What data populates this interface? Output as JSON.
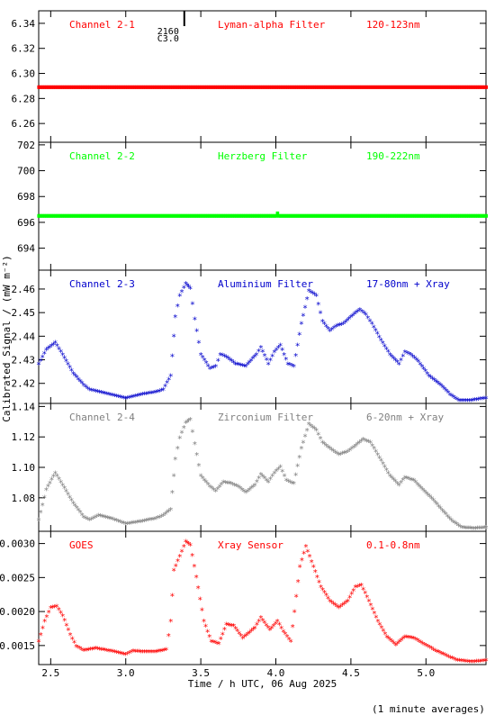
{
  "figure": {
    "xlabel": "Time / h UTC, 06 Aug 2025",
    "ylabel": "Calibrated Signal / (mW m⁻²)",
    "footnote": "(1 minute averages)",
    "marker_annotation": {
      "x": 3.39,
      "line1": "2160",
      "line2": "C3.0"
    },
    "xlim": [
      2.42,
      5.4
    ],
    "xticks": [
      2.5,
      3.0,
      3.5,
      4.0,
      4.5,
      5.0
    ],
    "xtick_labels": [
      "2.5",
      "3.0",
      "3.5",
      "4.0",
      "4.5",
      "5.0"
    ]
  },
  "chart_data": [
    {
      "type": "scatter",
      "title": "",
      "labels": {
        "left": "Channel 2-1",
        "center": "Lyman-alpha Filter",
        "right": "120-123nm"
      },
      "color": "#ff0000",
      "ylim": [
        6.245,
        6.35
      ],
      "yticks": [
        6.26,
        6.28,
        6.3,
        6.32,
        6.34
      ],
      "ytick_labels": [
        "6.26",
        "6.28",
        "6.30",
        "6.32",
        "6.34"
      ],
      "points": [
        [
          2.42,
          6.289
        ],
        [
          5.4,
          6.289
        ]
      ]
    },
    {
      "type": "scatter",
      "title": "",
      "labels": {
        "left": "Channel 2-2",
        "center": "Herzberg Filter",
        "right": "190-222nm"
      },
      "color": "#00ff00",
      "ylim": [
        692.3,
        702.2
      ],
      "yticks": [
        694,
        696,
        698,
        700,
        702
      ],
      "ytick_labels": [
        "694",
        "696",
        "698",
        "700",
        "702"
      ],
      "points": [
        [
          2.42,
          696.5
        ],
        [
          4.0,
          696.5
        ],
        [
          4.01,
          696.7
        ],
        [
          4.02,
          696.5
        ],
        [
          5.4,
          696.5
        ]
      ]
    },
    {
      "type": "scatter",
      "title": "",
      "labels": {
        "left": "Channel 2-3",
        "center": "Aluminium Filter",
        "right": "17-80nm + Xray"
      },
      "color": "#0000cc",
      "ylim": [
        2.4115,
        2.468
      ],
      "yticks": [
        2.42,
        2.43,
        2.44,
        2.45,
        2.46
      ],
      "ytick_labels": [
        "2.42",
        "2.43",
        "2.44",
        "2.45",
        "2.46"
      ],
      "points": [
        [
          2.42,
          2.428
        ],
        [
          2.47,
          2.434
        ],
        [
          2.53,
          2.437
        ],
        [
          2.58,
          2.432
        ],
        [
          2.65,
          2.424
        ],
        [
          2.72,
          2.419
        ],
        [
          2.76,
          2.417
        ],
        [
          2.8,
          2.4165
        ],
        [
          2.9,
          2.415
        ],
        [
          3.0,
          2.4135
        ],
        [
          3.1,
          2.415
        ],
        [
          3.2,
          2.416
        ],
        [
          3.25,
          2.417
        ],
        [
          3.3,
          2.423
        ],
        [
          3.33,
          2.448
        ],
        [
          3.36,
          2.457
        ],
        [
          3.4,
          2.462
        ],
        [
          3.43,
          2.46
        ],
        [
          3.46,
          2.447
        ],
        [
          3.5,
          2.432
        ],
        [
          3.56,
          2.426
        ],
        [
          3.6,
          2.427
        ],
        [
          3.63,
          2.432
        ],
        [
          3.67,
          2.431
        ],
        [
          3.73,
          2.428
        ],
        [
          3.8,
          2.427
        ],
        [
          3.87,
          2.432
        ],
        [
          3.9,
          2.435
        ],
        [
          3.95,
          2.428
        ],
        [
          3.99,
          2.433
        ],
        [
          4.03,
          2.436
        ],
        [
          4.08,
          2.428
        ],
        [
          4.12,
          2.427
        ],
        [
          4.17,
          2.445
        ],
        [
          4.22,
          2.459
        ],
        [
          4.27,
          2.457
        ],
        [
          4.31,
          2.446
        ],
        [
          4.36,
          2.442
        ],
        [
          4.4,
          2.444
        ],
        [
          4.45,
          2.445
        ],
        [
          4.5,
          2.448
        ],
        [
          4.56,
          2.451
        ],
        [
          4.6,
          2.449
        ],
        [
          4.64,
          2.445
        ],
        [
          4.7,
          2.438
        ],
        [
          4.76,
          2.432
        ],
        [
          4.82,
          2.428
        ],
        [
          4.86,
          2.433
        ],
        [
          4.9,
          2.432
        ],
        [
          4.95,
          2.429
        ],
        [
          5.02,
          2.423
        ],
        [
          5.1,
          2.419
        ],
        [
          5.16,
          2.415
        ],
        [
          5.22,
          2.4125
        ],
        [
          5.3,
          2.4125
        ],
        [
          5.4,
          2.4135
        ]
      ]
    },
    {
      "type": "scatter",
      "title": "",
      "labels": {
        "left": "Channel 2-4",
        "center": "Zirconium Filter",
        "right": "6-20nm + Xray"
      },
      "color": "#808080",
      "ylim": [
        1.058,
        1.142
      ],
      "yticks": [
        1.08,
        1.1,
        1.12,
        1.14
      ],
      "ytick_labels": [
        "1.08",
        "1.10",
        "1.12",
        "1.14"
      ],
      "points": [
        [
          2.42,
          1.065
        ],
        [
          2.47,
          1.085
        ],
        [
          2.53,
          1.096
        ],
        [
          2.58,
          1.088
        ],
        [
          2.65,
          1.076
        ],
        [
          2.72,
          1.067
        ],
        [
          2.76,
          1.065
        ],
        [
          2.82,
          1.068
        ],
        [
          2.9,
          1.066
        ],
        [
          3.0,
          1.0625
        ],
        [
          3.1,
          1.064
        ],
        [
          3.2,
          1.066
        ],
        [
          3.25,
          1.068
        ],
        [
          3.3,
          1.072
        ],
        [
          3.33,
          1.105
        ],
        [
          3.36,
          1.119
        ],
        [
          3.4,
          1.129
        ],
        [
          3.43,
          1.131
        ],
        [
          3.46,
          1.115
        ],
        [
          3.5,
          1.094
        ],
        [
          3.56,
          1.087
        ],
        [
          3.6,
          1.084
        ],
        [
          3.65,
          1.09
        ],
        [
          3.7,
          1.089
        ],
        [
          3.75,
          1.087
        ],
        [
          3.8,
          1.083
        ],
        [
          3.86,
          1.088
        ],
        [
          3.9,
          1.095
        ],
        [
          3.95,
          1.09
        ],
        [
          3.99,
          1.096
        ],
        [
          4.03,
          1.1
        ],
        [
          4.07,
          1.091
        ],
        [
          4.12,
          1.089
        ],
        [
          4.17,
          1.112
        ],
        [
          4.22,
          1.128
        ],
        [
          4.27,
          1.124
        ],
        [
          4.31,
          1.116
        ],
        [
          4.36,
          1.112
        ],
        [
          4.42,
          1.108
        ],
        [
          4.48,
          1.11
        ],
        [
          4.52,
          1.113
        ],
        [
          4.58,
          1.118
        ],
        [
          4.63,
          1.116
        ],
        [
          4.69,
          1.106
        ],
        [
          4.76,
          1.094
        ],
        [
          4.82,
          1.088
        ],
        [
          4.86,
          1.093
        ],
        [
          4.92,
          1.091
        ],
        [
          4.98,
          1.085
        ],
        [
          5.05,
          1.078
        ],
        [
          5.12,
          1.07
        ],
        [
          5.18,
          1.064
        ],
        [
          5.24,
          1.06
        ],
        [
          5.32,
          1.0595
        ],
        [
          5.4,
          1.06
        ]
      ]
    },
    {
      "type": "scatter",
      "title": "",
      "labels": {
        "left": "GOES",
        "center": "Xray Sensor",
        "right": "0.1-0.8nm"
      },
      "color": "#ff0000",
      "ylim": [
        0.00122,
        0.00318
      ],
      "yticks": [
        0.0015,
        0.002,
        0.0025,
        0.003
      ],
      "ytick_labels": [
        "0.0015",
        "0.0020",
        "0.0025",
        "0.0030"
      ],
      "points": [
        [
          2.42,
          0.00155
        ],
        [
          2.46,
          0.00185
        ],
        [
          2.5,
          0.00205
        ],
        [
          2.54,
          0.00207
        ],
        [
          2.58,
          0.00193
        ],
        [
          2.63,
          0.00165
        ],
        [
          2.67,
          0.00148
        ],
        [
          2.72,
          0.00142
        ],
        [
          2.8,
          0.00145
        ],
        [
          2.9,
          0.00141
        ],
        [
          3.0,
          0.00136
        ],
        [
          3.05,
          0.00141
        ],
        [
          3.1,
          0.0014
        ],
        [
          3.2,
          0.0014
        ],
        [
          3.27,
          0.00143
        ],
        [
          3.3,
          0.00185
        ],
        [
          3.32,
          0.0026
        ],
        [
          3.36,
          0.0028
        ],
        [
          3.4,
          0.00302
        ],
        [
          3.43,
          0.00297
        ],
        [
          3.47,
          0.0025
        ],
        [
          3.52,
          0.00185
        ],
        [
          3.57,
          0.00155
        ],
        [
          3.62,
          0.00152
        ],
        [
          3.67,
          0.0018
        ],
        [
          3.72,
          0.00178
        ],
        [
          3.78,
          0.0016
        ],
        [
          3.86,
          0.00175
        ],
        [
          3.9,
          0.0019
        ],
        [
          3.96,
          0.00172
        ],
        [
          4.01,
          0.00185
        ],
        [
          4.05,
          0.0017
        ],
        [
          4.1,
          0.00155
        ],
        [
          4.16,
          0.00265
        ],
        [
          4.2,
          0.00295
        ],
        [
          4.25,
          0.00265
        ],
        [
          4.3,
          0.00235
        ],
        [
          4.36,
          0.00215
        ],
        [
          4.42,
          0.00205
        ],
        [
          4.48,
          0.00215
        ],
        [
          4.53,
          0.00235
        ],
        [
          4.57,
          0.00238
        ],
        [
          4.62,
          0.00215
        ],
        [
          4.68,
          0.00185
        ],
        [
          4.74,
          0.00162
        ],
        [
          4.8,
          0.0015
        ],
        [
          4.86,
          0.00162
        ],
        [
          4.92,
          0.0016
        ],
        [
          4.98,
          0.00152
        ],
        [
          5.06,
          0.00142
        ],
        [
          5.14,
          0.00134
        ],
        [
          5.2,
          0.00128
        ],
        [
          5.3,
          0.00125
        ],
        [
          5.4,
          0.00127
        ]
      ]
    }
  ]
}
